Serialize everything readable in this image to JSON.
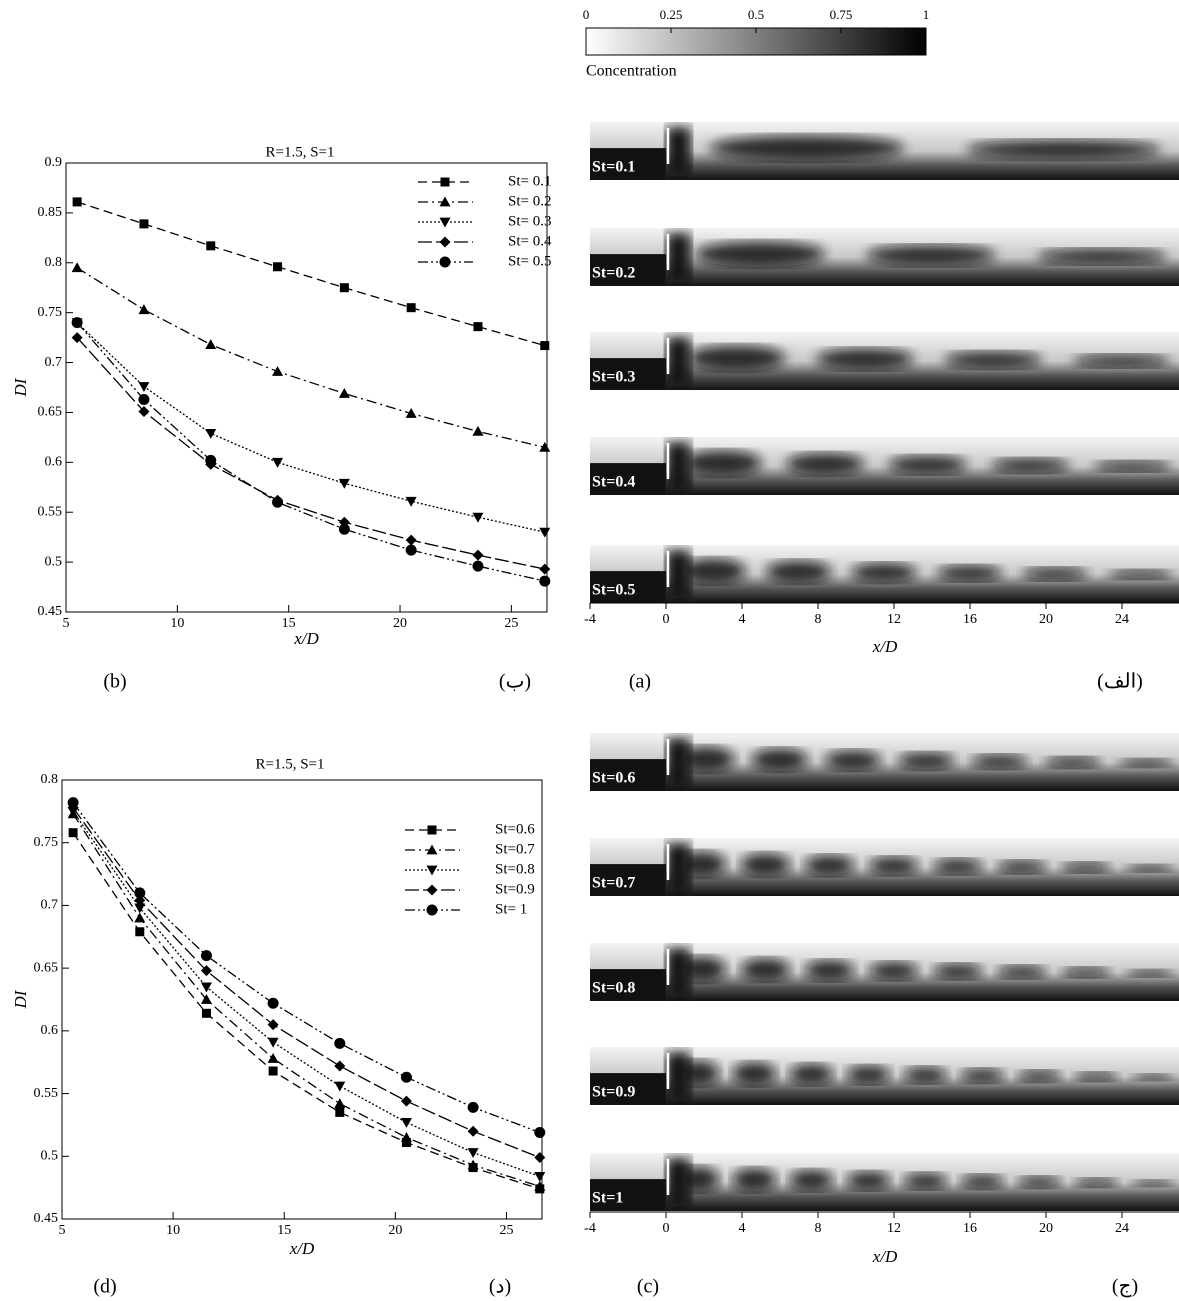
{
  "chart_data": [
    {
      "type": "line",
      "annotation": "R=1.5, S=1",
      "x_label": "x/D",
      "y_label": "DI",
      "x": [
        5.5,
        8.5,
        11.5,
        14.5,
        17.5,
        20.5,
        23.5,
        26.5
      ],
      "xlim": [
        5,
        26.6
      ],
      "xticks": [
        5,
        10,
        15,
        20,
        25
      ],
      "ylim": [
        0.45,
        0.9
      ],
      "yticks": [
        0.45,
        0.5,
        0.55,
        0.6,
        0.65,
        0.7,
        0.75,
        0.8,
        0.85,
        0.9
      ],
      "series": [
        {
          "name": "St= 0.1",
          "color": "#000000",
          "marker": "square",
          "dash": "dashed",
          "values": [
            0.861,
            0.839,
            0.817,
            0.796,
            0.775,
            0.755,
            0.736,
            0.717
          ]
        },
        {
          "name": "St= 0.2",
          "color": "#000000",
          "marker": "triangle-up",
          "dash": "dashdot",
          "values": [
            0.795,
            0.753,
            0.718,
            0.691,
            0.669,
            0.649,
            0.631,
            0.615
          ]
        },
        {
          "name": "St= 0.3",
          "color": "#000000",
          "marker": "triangle-down",
          "dash": "dotted",
          "values": [
            0.74,
            0.676,
            0.629,
            0.6,
            0.579,
            0.561,
            0.545,
            0.53
          ]
        },
        {
          "name": "St= 0.4",
          "color": "#000000",
          "marker": "diamond",
          "dash": "longdash",
          "values": [
            0.725,
            0.651,
            0.598,
            0.562,
            0.54,
            0.522,
            0.507,
            0.493
          ]
        },
        {
          "name": "St= 0.5",
          "color": "#000000",
          "marker": "circle",
          "dash": "dashdotdot",
          "values": [
            0.74,
            0.663,
            0.602,
            0.56,
            0.533,
            0.512,
            0.496,
            0.481
          ]
        }
      ]
    },
    {
      "type": "line",
      "annotation": "R=1.5, S=1",
      "x_label": "x/D",
      "y_label": "DI",
      "x": [
        5.5,
        8.5,
        11.5,
        14.5,
        17.5,
        20.5,
        23.5,
        26.5
      ],
      "xlim": [
        5,
        26.6
      ],
      "xticks": [
        5,
        10,
        15,
        20,
        25
      ],
      "ylim": [
        0.45,
        0.8
      ],
      "yticks": [
        0.45,
        0.5,
        0.55,
        0.6,
        0.65,
        0.7,
        0.75,
        0.8
      ],
      "series": [
        {
          "name": "St=0.6",
          "color": "#000000",
          "marker": "square",
          "dash": "dashed",
          "values": [
            0.758,
            0.679,
            0.614,
            0.568,
            0.535,
            0.511,
            0.491,
            0.474
          ]
        },
        {
          "name": "St=0.7",
          "color": "#000000",
          "marker": "triangle-up",
          "dash": "dashdot",
          "values": [
            0.773,
            0.69,
            0.625,
            0.578,
            0.542,
            0.515,
            0.493,
            0.476
          ]
        },
        {
          "name": "St=0.8",
          "color": "#000000",
          "marker": "triangle-down",
          "dash": "dotted",
          "values": [
            0.775,
            0.698,
            0.635,
            0.591,
            0.556,
            0.527,
            0.503,
            0.484
          ]
        },
        {
          "name": "St=0.9",
          "color": "#000000",
          "marker": "diamond",
          "dash": "longdash",
          "values": [
            0.778,
            0.704,
            0.648,
            0.605,
            0.572,
            0.544,
            0.52,
            0.499
          ]
        },
        {
          "name": "St= 1",
          "color": "#000000",
          "marker": "circle",
          "dash": "dashdotdot",
          "values": [
            0.782,
            0.71,
            0.66,
            0.622,
            0.59,
            0.563,
            0.539,
            0.519
          ]
        }
      ]
    }
  ],
  "colorbar": {
    "label": "Concentration",
    "ticks": [
      0,
      0.25,
      0.5,
      0.75,
      1
    ],
    "lim": [
      0,
      1
    ]
  },
  "panels": [
    {
      "labels": [
        "St=0.1",
        "St=0.2",
        "St=0.3",
        "St=0.4",
        "St=0.5"
      ],
      "x_label": "x/D",
      "xlim": [
        -4,
        27
      ],
      "xticks": [
        -4,
        0,
        4,
        8,
        12,
        16,
        20,
        24
      ]
    },
    {
      "labels": [
        "St=0.6",
        "St=0.7",
        "St=0.8",
        "St=0.9",
        "St=1"
      ],
      "x_label": "x/D",
      "xlim": [
        -4,
        27
      ],
      "xticks": [
        -4,
        0,
        4,
        8,
        12,
        16,
        20,
        24
      ]
    }
  ],
  "captions": [
    "(b)",
    "(ب)",
    "(a)",
    "(الف)",
    "(d)",
    "(د)",
    "(c)",
    "(ج)"
  ]
}
